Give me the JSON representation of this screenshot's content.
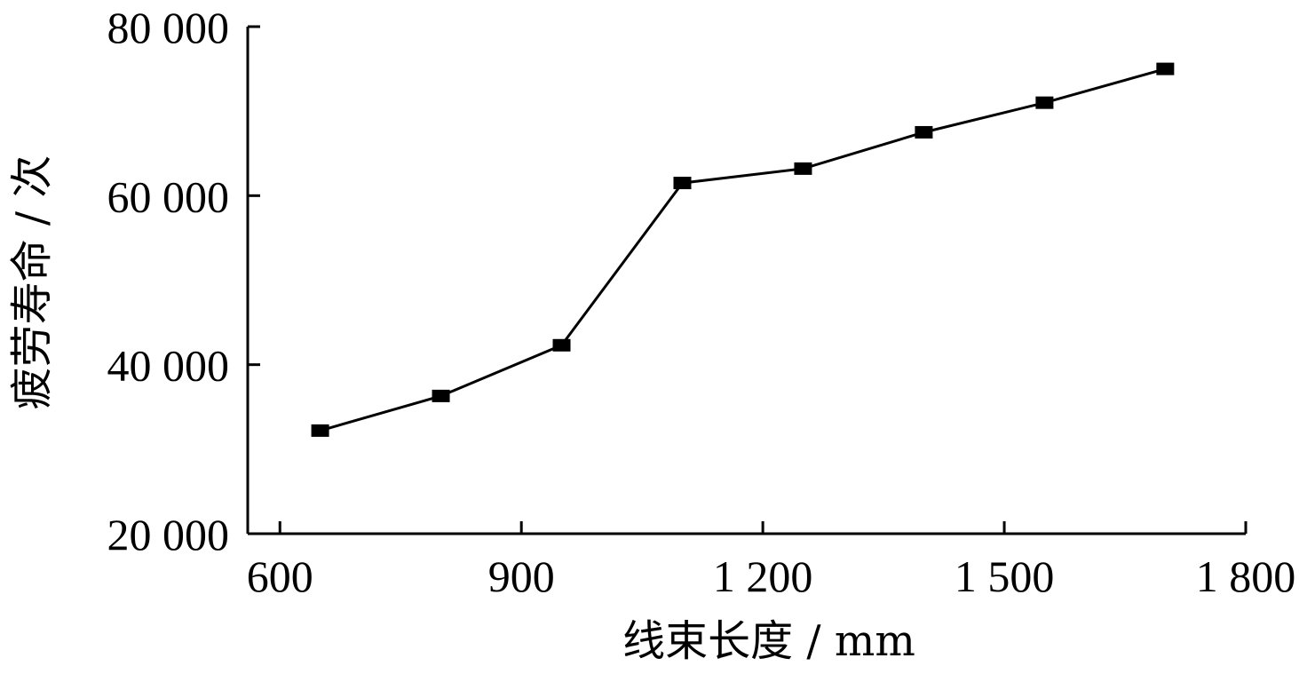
{
  "chart_data": {
    "type": "line",
    "title": "",
    "xlabel": "线束长度 / mm",
    "ylabel": "疲劳寿命 / 次",
    "xlim": [
      560,
      1800
    ],
    "ylim": [
      20000,
      80000
    ],
    "x_ticks": [
      600,
      900,
      1200,
      1500,
      1800
    ],
    "x_tick_labels": [
      "600",
      "900",
      "1 200",
      "1 500",
      "1 800"
    ],
    "y_ticks": [
      20000,
      40000,
      60000,
      80000
    ],
    "y_tick_labels": [
      "20 000",
      "40 000",
      "60 000",
      "80 000"
    ],
    "grid": false,
    "marker": "square",
    "line_color": "#000000",
    "series": [
      {
        "x": [
          650,
          800,
          950,
          1100,
          1250,
          1400,
          1550,
          1700
        ],
        "values": [
          32200,
          36300,
          42300,
          61500,
          63200,
          67500,
          71000,
          75000
        ]
      }
    ]
  }
}
